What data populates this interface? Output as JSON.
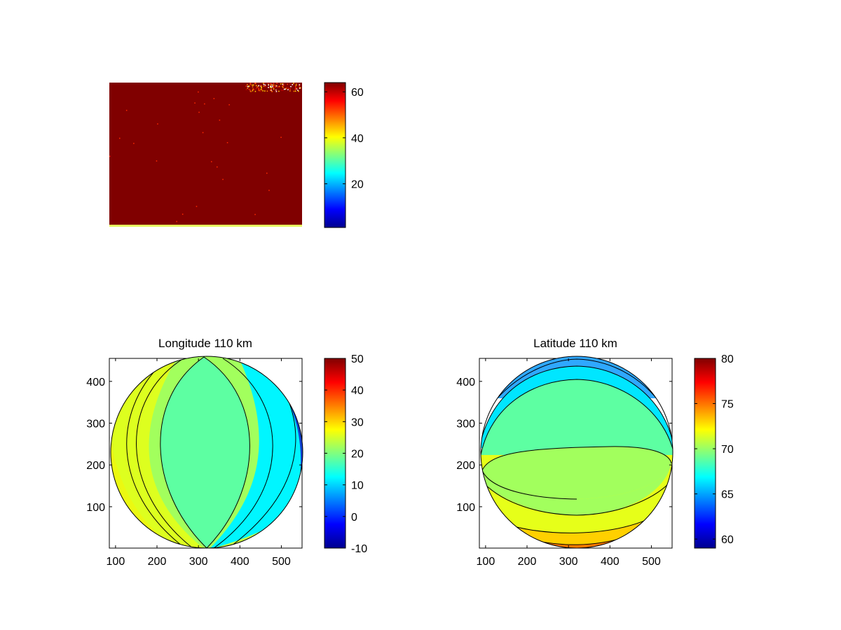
{
  "figure": {
    "colormap": "jet"
  },
  "chart_data": [
    {
      "type": "heatmap",
      "name": "top-image",
      "title": "",
      "dominant_value": 64,
      "colorbar": {
        "range": [
          1,
          64
        ],
        "ticks": [
          "20",
          "40",
          "60"
        ]
      },
      "axes_visible": false
    },
    {
      "type": "heatmap",
      "name": "longitude",
      "title": "Longitude 110 km",
      "xlabel": "",
      "ylabel": "",
      "xlim": [
        85,
        550
      ],
      "ylim": [
        1,
        455
      ],
      "x_ticks": [
        "100",
        "200",
        "300",
        "400",
        "500"
      ],
      "y_ticks": [
        "100",
        "200",
        "300",
        "400"
      ],
      "colorbar": {
        "range": [
          -10,
          50
        ],
        "ticks": [
          "-10",
          "0",
          "10",
          "20",
          "30",
          "40",
          "50"
        ]
      },
      "levels": [
        -10,
        -5,
        0,
        5,
        10,
        15,
        20,
        25,
        30,
        35,
        40,
        45,
        50
      ],
      "contour_colors": [
        "#5dffa2",
        "#5fffa1",
        "#a2ff5d",
        "#f2ff0d",
        "#ffd800",
        "#ff9d00",
        "#ff6300",
        "#ff2800",
        "#00e6ff",
        "#00b8ff",
        "#0085ff",
        "#0050ff"
      ]
    },
    {
      "type": "heatmap",
      "name": "latitude",
      "title": "Latitude 110 km",
      "xlabel": "",
      "ylabel": "",
      "xlim": [
        85,
        550
      ],
      "ylim": [
        1,
        455
      ],
      "x_ticks": [
        "100",
        "200",
        "300",
        "400",
        "500"
      ],
      "y_ticks": [
        "100",
        "200",
        "300",
        "400"
      ],
      "colorbar": {
        "range": [
          59,
          80
        ],
        "ticks": [
          "60",
          "65",
          "70",
          "75",
          "80"
        ]
      },
      "levels": [
        60,
        62,
        64,
        66,
        68,
        70,
        72,
        74,
        76,
        78,
        80
      ],
      "contour_colors": [
        "#2fa8ff",
        "#00d4ff",
        "#5dffa2",
        "#a2ff5d",
        "#e6ff19",
        "#ffd000",
        "#ff9a00",
        "#ff5a00",
        "#c20000",
        "#10108f"
      ]
    }
  ]
}
